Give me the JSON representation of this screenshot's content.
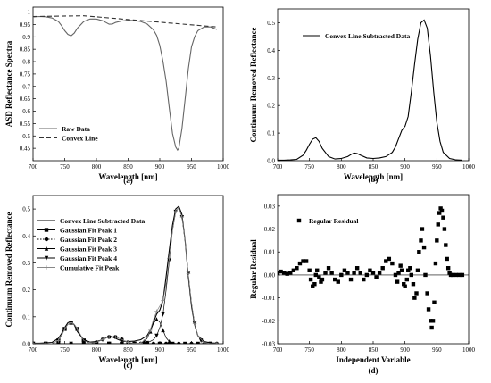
{
  "chart_data": [
    {
      "type": "line",
      "caption": "(a)",
      "xlabel": "Wavelength [nm]",
      "ylabel": "ASD Reflectance Spectra",
      "xlim": [
        700,
        1000
      ],
      "ylim": [
        0.4,
        1.02
      ],
      "xticks": [
        700,
        750,
        800,
        850,
        900,
        950,
        1000
      ],
      "yticks": [
        0.45,
        0.5,
        0.55,
        0.6,
        0.65,
        0.7,
        0.75,
        0.8,
        0.85,
        0.9,
        0.95,
        1
      ],
      "ytick_labels": [
        "0.45",
        "0.5",
        "0.55",
        "0.6",
        "0.65",
        "0.7",
        "0.75",
        "0.8",
        "0.85",
        "0.9",
        "0.95",
        "1"
      ],
      "legend_position": "bottom-left",
      "series": [
        {
          "name": "Raw Data",
          "style": "solid",
          "color": "#666666",
          "x": [
            700,
            710,
            720,
            730,
            740,
            745,
            750,
            755,
            760,
            765,
            770,
            780,
            790,
            800,
            810,
            815,
            820,
            825,
            830,
            840,
            850,
            860,
            870,
            880,
            890,
            895,
            900,
            905,
            910,
            915,
            920,
            925,
            928,
            930,
            935,
            940,
            945,
            950,
            955,
            960,
            970,
            980,
            990
          ],
          "y": [
            0.98,
            0.982,
            0.981,
            0.976,
            0.962,
            0.945,
            0.925,
            0.91,
            0.904,
            0.915,
            0.935,
            0.962,
            0.972,
            0.972,
            0.965,
            0.958,
            0.951,
            0.952,
            0.958,
            0.964,
            0.967,
            0.966,
            0.962,
            0.952,
            0.928,
            0.905,
            0.865,
            0.8,
            0.72,
            0.61,
            0.51,
            0.455,
            0.443,
            0.45,
            0.53,
            0.65,
            0.77,
            0.86,
            0.9,
            0.925,
            0.94,
            0.94,
            0.93
          ]
        },
        {
          "name": "Convex Line",
          "style": "dashed",
          "color": "#333333",
          "x": [
            700,
            780,
            990
          ],
          "y": [
            0.982,
            0.985,
            0.94
          ]
        }
      ]
    },
    {
      "type": "line",
      "caption": "(b)",
      "xlabel": "Wavelength [nm]",
      "ylabel": "Continuum Removed Reflectance",
      "xlim": [
        700,
        1000
      ],
      "ylim": [
        0,
        0.55
      ],
      "xticks": [
        700,
        750,
        800,
        850,
        900,
        950,
        1000
      ],
      "yticks": [
        0,
        0.1,
        0.2,
        0.3,
        0.4,
        0.5
      ],
      "ytick_labels": [
        "0.0",
        "0.1",
        "0.2",
        "0.3",
        "0.4",
        "0.5"
      ],
      "legend_position": "top-right",
      "series": [
        {
          "name": "Convex Line Subtracted Data",
          "style": "solid",
          "color": "#000000",
          "x": [
            700,
            710,
            720,
            730,
            740,
            745,
            750,
            755,
            760,
            765,
            770,
            780,
            790,
            800,
            810,
            815,
            820,
            825,
            830,
            840,
            850,
            860,
            870,
            880,
            885,
            890,
            895,
            900,
            905,
            910,
            915,
            920,
            925,
            930,
            935,
            940,
            945,
            950,
            955,
            960,
            970,
            980,
            990
          ],
          "y": [
            0.002,
            0.002,
            0.003,
            0.005,
            0.02,
            0.038,
            0.06,
            0.078,
            0.083,
            0.07,
            0.045,
            0.015,
            0.006,
            0.008,
            0.015,
            0.022,
            0.028,
            0.026,
            0.02,
            0.01,
            0.008,
            0.01,
            0.015,
            0.03,
            0.05,
            0.08,
            0.11,
            0.125,
            0.16,
            0.25,
            0.35,
            0.44,
            0.5,
            0.51,
            0.48,
            0.38,
            0.25,
            0.14,
            0.07,
            0.03,
            0.008,
            0.003,
            0.002
          ]
        }
      ]
    },
    {
      "type": "line",
      "caption": "(c)",
      "xlabel": "Wavelength [nm]",
      "ylabel": "Continuum Removed Reflectance",
      "xlim": [
        700,
        1000
      ],
      "ylim": [
        0,
        0.55
      ],
      "xticks": [
        700,
        750,
        800,
        850,
        900,
        950,
        1000
      ],
      "yticks": [
        0,
        0.1,
        0.2,
        0.3,
        0.4,
        0.5
      ],
      "ytick_labels": [
        "0.0",
        "0.1",
        "0.2",
        "0.3",
        "0.4",
        "0.5"
      ],
      "legend_position": "top-left",
      "series": [
        {
          "name": "Convex Line Subtracted Data",
          "style": "solid",
          "marker": "none",
          "color": "#000000",
          "x": [
            700,
            710,
            720,
            730,
            740,
            745,
            750,
            755,
            760,
            765,
            770,
            780,
            790,
            800,
            810,
            815,
            820,
            825,
            830,
            840,
            850,
            860,
            870,
            880,
            885,
            890,
            895,
            900,
            905,
            910,
            915,
            920,
            925,
            930,
            935,
            940,
            945,
            950,
            955,
            960,
            970,
            980,
            990
          ],
          "y": [
            0.002,
            0.002,
            0.003,
            0.005,
            0.02,
            0.038,
            0.06,
            0.078,
            0.083,
            0.07,
            0.045,
            0.015,
            0.006,
            0.008,
            0.015,
            0.022,
            0.028,
            0.026,
            0.02,
            0.01,
            0.008,
            0.01,
            0.015,
            0.03,
            0.05,
            0.08,
            0.11,
            0.125,
            0.16,
            0.25,
            0.35,
            0.44,
            0.5,
            0.51,
            0.48,
            0.38,
            0.25,
            0.14,
            0.07,
            0.03,
            0.008,
            0.003,
            0.002
          ]
        },
        {
          "name": "Gaussian Fit Peak 1",
          "style": "solid",
          "marker": "square",
          "color": "#000000",
          "x": [
            700,
            710,
            720,
            730,
            740,
            745,
            750,
            755,
            760,
            765,
            770,
            775,
            780,
            790,
            800,
            810,
            820,
            830,
            840,
            850,
            860,
            870,
            880,
            890,
            900,
            910,
            920,
            930,
            940,
            950,
            960,
            970,
            980,
            990
          ],
          "y": [
            0,
            0,
            0,
            0.001,
            0.012,
            0.03,
            0.055,
            0.072,
            0.078,
            0.072,
            0.055,
            0.03,
            0.012,
            0.001,
            0,
            0,
            0,
            0,
            0,
            0,
            0,
            0,
            0,
            0,
            0,
            0,
            0,
            0,
            0,
            0,
            0,
            0,
            0,
            0
          ]
        },
        {
          "name": "Gaussian Fit Peak 2",
          "style": "dotted",
          "marker": "circle",
          "color": "#000000",
          "x": [
            700,
            710,
            720,
            730,
            740,
            750,
            760,
            770,
            780,
            790,
            800,
            805,
            810,
            815,
            820,
            825,
            830,
            835,
            840,
            845,
            850,
            860,
            870,
            880,
            890,
            900,
            910,
            920,
            930,
            940,
            950,
            960,
            970,
            980,
            990
          ],
          "y": [
            0,
            0,
            0,
            0,
            0,
            0,
            0,
            0,
            0,
            0.001,
            0.005,
            0.01,
            0.016,
            0.021,
            0.025,
            0.026,
            0.025,
            0.021,
            0.016,
            0.01,
            0.005,
            0.001,
            0,
            0,
            0,
            0,
            0,
            0,
            0,
            0,
            0,
            0,
            0,
            0,
            0
          ]
        },
        {
          "name": "Gaussian Fit Peak 3",
          "style": "solid",
          "marker": "triangle-up",
          "color": "#000000",
          "x": [
            700,
            710,
            720,
            730,
            740,
            750,
            760,
            770,
            780,
            790,
            800,
            810,
            820,
            830,
            840,
            850,
            860,
            870,
            875,
            880,
            885,
            890,
            895,
            900,
            905,
            910,
            915,
            920,
            930,
            940,
            950,
            960,
            970,
            980,
            990
          ],
          "y": [
            0,
            0,
            0,
            0,
            0,
            0,
            0,
            0,
            0,
            0,
            0,
            0,
            0,
            0,
            0,
            0,
            0,
            0.002,
            0.008,
            0.02,
            0.045,
            0.075,
            0.09,
            0.08,
            0.05,
            0.022,
            0.008,
            0.002,
            0,
            0,
            0,
            0,
            0,
            0,
            0
          ]
        },
        {
          "name": "Gaussian Fit Peak 4",
          "style": "solid",
          "marker": "triangle-down",
          "color": "#000000",
          "x": [
            700,
            710,
            720,
            730,
            740,
            750,
            760,
            770,
            780,
            790,
            800,
            810,
            820,
            830,
            840,
            850,
            860,
            870,
            880,
            890,
            895,
            900,
            905,
            910,
            915,
            920,
            925,
            930,
            935,
            940,
            945,
            950,
            955,
            960,
            965,
            970,
            980,
            990
          ],
          "y": [
            0,
            0,
            0,
            0,
            0,
            0,
            0,
            0,
            0,
            0,
            0,
            0,
            0,
            0,
            0,
            0,
            0,
            0,
            0.003,
            0.015,
            0.03,
            0.06,
            0.11,
            0.2,
            0.31,
            0.42,
            0.49,
            0.505,
            0.47,
            0.38,
            0.26,
            0.15,
            0.075,
            0.03,
            0.012,
            0.004,
            0,
            0
          ]
        },
        {
          "name": "Cumulative Fit Peak",
          "style": "solid",
          "marker": "plus",
          "color": "#888888",
          "x": [
            700,
            710,
            720,
            730,
            740,
            745,
            750,
            755,
            760,
            765,
            770,
            780,
            790,
            800,
            810,
            815,
            820,
            825,
            830,
            840,
            850,
            860,
            870,
            880,
            885,
            890,
            895,
            900,
            905,
            910,
            915,
            920,
            925,
            930,
            935,
            940,
            945,
            950,
            955,
            960,
            970,
            980,
            990
          ],
          "y": [
            0,
            0,
            0,
            0.001,
            0.012,
            0.03,
            0.055,
            0.072,
            0.078,
            0.072,
            0.055,
            0.012,
            0.002,
            0.005,
            0.016,
            0.021,
            0.025,
            0.026,
            0.025,
            0.016,
            0.005,
            0.001,
            0.002,
            0.023,
            0.05,
            0.09,
            0.12,
            0.14,
            0.16,
            0.222,
            0.318,
            0.422,
            0.49,
            0.505,
            0.47,
            0.38,
            0.26,
            0.15,
            0.075,
            0.03,
            0.004,
            0,
            0
          ]
        }
      ]
    },
    {
      "type": "scatter",
      "caption": "(d)",
      "xlabel": "Independent Variable",
      "ylabel": "Regular Residual",
      "xlim": [
        700,
        1000
      ],
      "ylim": [
        -0.03,
        0.035
      ],
      "xticks": [
        700,
        750,
        800,
        850,
        900,
        950,
        1000
      ],
      "yticks": [
        -0.03,
        -0.02,
        -0.01,
        0,
        0.01,
        0.02,
        0.03
      ],
      "ytick_labels": [
        "-0.03",
        "-0.02",
        "-0.01",
        "0.00",
        "0.01",
        "0.02",
        "0.03"
      ],
      "legend_position": "top-left",
      "series": [
        {
          "name": "Regular Residual",
          "marker": "square",
          "color": "#000000",
          "x": [
            700,
            705,
            710,
            715,
            720,
            725,
            730,
            735,
            740,
            745,
            750,
            752,
            755,
            758,
            760,
            762,
            765,
            768,
            770,
            775,
            780,
            785,
            790,
            795,
            800,
            805,
            810,
            815,
            820,
            825,
            830,
            835,
            840,
            845,
            850,
            855,
            860,
            865,
            870,
            875,
            880,
            885,
            888,
            890,
            893,
            895,
            898,
            900,
            903,
            905,
            908,
            910,
            913,
            915,
            918,
            920,
            922,
            925,
            927,
            930,
            932,
            935,
            937,
            940,
            942,
            944,
            946,
            948,
            950,
            952,
            954,
            956,
            958,
            960,
            962,
            964,
            966,
            968,
            970,
            972,
            975,
            980,
            985,
            990
          ],
          "y": [
            0.001,
            0.0015,
            0.001,
            0.0005,
            0.001,
            0.002,
            0.003,
            0.005,
            0.006,
            0.006,
            0.002,
            -0.002,
            -0.005,
            -0.004,
            0,
            0.002,
            -0.001,
            -0.003,
            -0.002,
            0.001,
            0.003,
            0.001,
            -0.002,
            -0.003,
            0,
            0.002,
            0.001,
            -0.002,
            0.001,
            0.003,
            0.001,
            -0.002,
            0,
            0.002,
            0.001,
            -0.001,
            0.001,
            0.003,
            0.006,
            0.007,
            0.005,
            0,
            -0.003,
            0.001,
            0.004,
            0.002,
            -0.004,
            -0.005,
            -0.002,
            0.002,
            0.003,
            0,
            -0.004,
            -0.01,
            -0.008,
            0.002,
            0.01,
            0.015,
            0.02,
            0.012,
            0,
            -0.008,
            -0.015,
            -0.02,
            -0.023,
            -0.02,
            -0.012,
            0.005,
            0.015,
            0.022,
            0.027,
            0.029,
            0.028,
            0.025,
            0.02,
            0.013,
            0.007,
            0.003,
            0.001,
            0,
            0,
            0,
            0,
            0
          ]
        }
      ]
    }
  ]
}
